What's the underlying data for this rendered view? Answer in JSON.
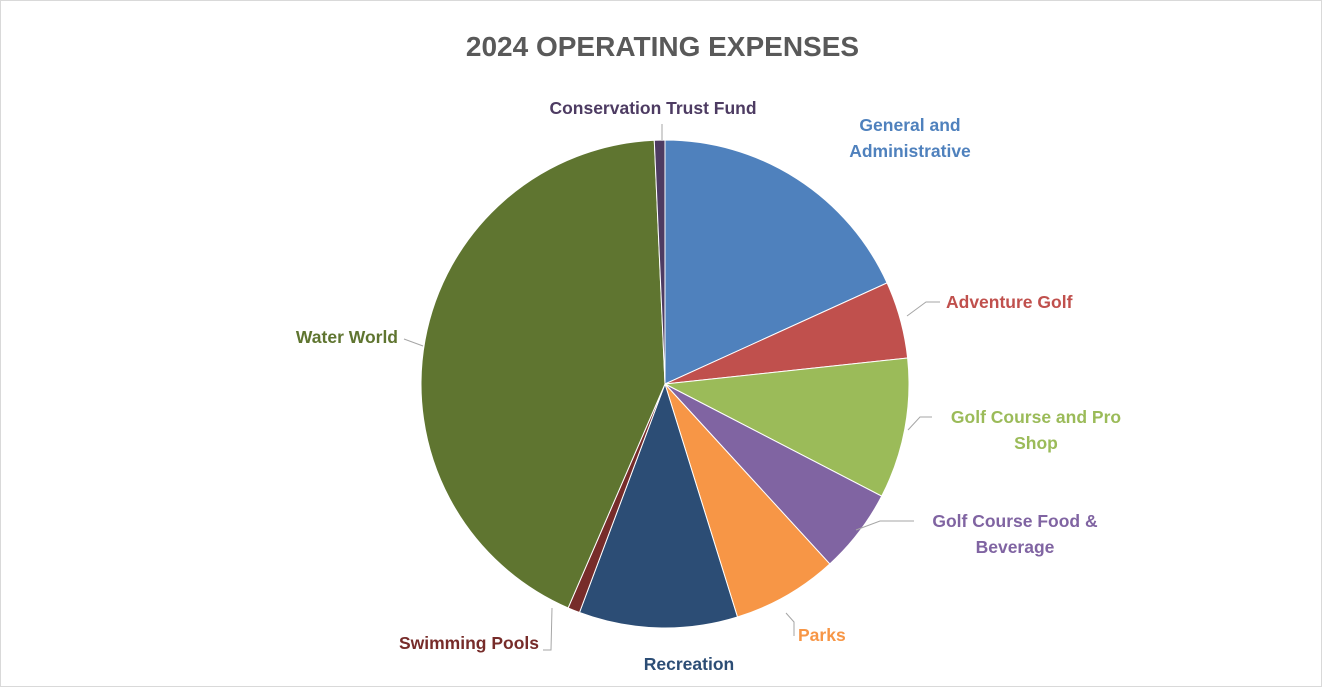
{
  "chart_data": {
    "type": "pie",
    "title": "2024 OPERATING EXPENSES",
    "start_angle_deg": 0,
    "direction": "clockwise",
    "slices": [
      {
        "label": "General and Administrative",
        "value": 18.2,
        "color": "#4f81bd"
      },
      {
        "label": "Adventure Golf",
        "value": 5.1,
        "color": "#c0504d"
      },
      {
        "label": "Golf Course and Pro Shop",
        "value": 9.3,
        "color": "#9bbb59"
      },
      {
        "label": "Golf Course Food & Beverage",
        "value": 5.6,
        "color": "#8064a2"
      },
      {
        "label": "Parks",
        "value": 7.0,
        "color": "#f79646"
      },
      {
        "label": "Recreation",
        "value": 10.5,
        "color": "#2c4d75"
      },
      {
        "label": "Swimming Pools",
        "value": 0.8,
        "color": "#772c2a"
      },
      {
        "label": "Water World",
        "value": 42.8,
        "color": "#5f7530"
      },
      {
        "label": "Conservation Trust Fund",
        "value": 0.7,
        "color": "#4d3b62"
      }
    ]
  }
}
